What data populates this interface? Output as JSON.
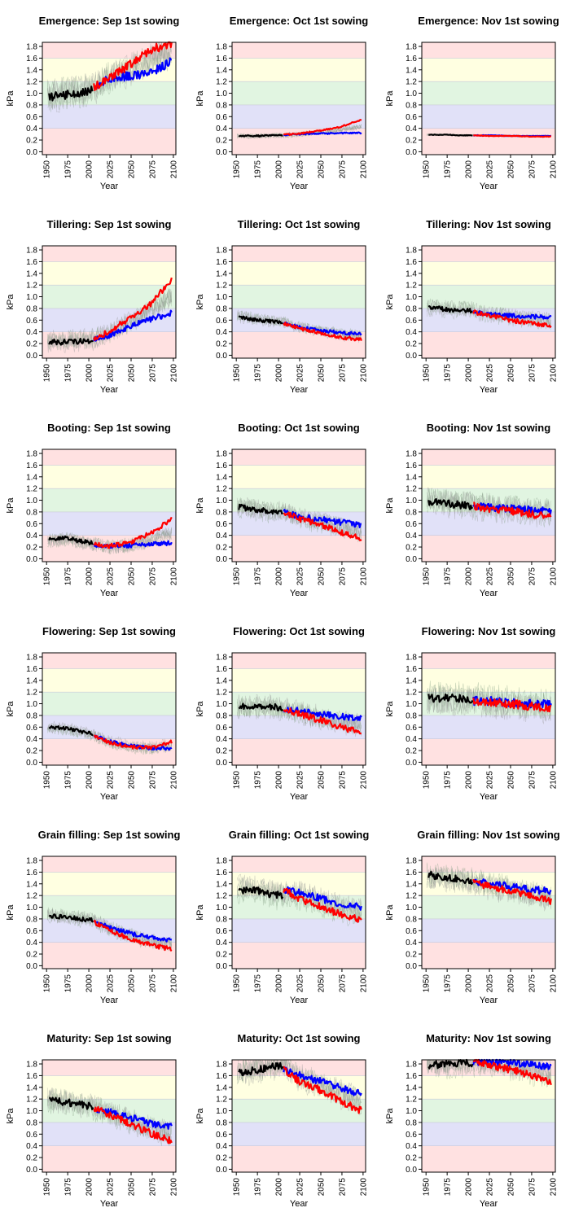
{
  "chart_data": {
    "type": "line",
    "xlabel": "Year",
    "ylabel": "kPa",
    "xlim": [
      1945,
      2103
    ],
    "ylim": [
      -0.05,
      1.87
    ],
    "x_ticks": [
      "1950",
      "1975",
      "2000",
      "2025",
      "2050",
      "2075",
      "2100"
    ],
    "y_ticks": [
      "0.0",
      "0.2",
      "0.4",
      "0.6",
      "0.8",
      "1.0",
      "1.2",
      "1.4",
      "1.6",
      "1.8"
    ],
    "bands": [
      {
        "from": -0.05,
        "to": 0.4,
        "color": "#ffe1e1"
      },
      {
        "from": 0.4,
        "to": 0.8,
        "color": "#e1e1f8"
      },
      {
        "from": 0.8,
        "to": 1.2,
        "color": "#e1f5e1"
      },
      {
        "from": 1.2,
        "to": 1.6,
        "color": "#ffffe1"
      },
      {
        "from": 1.6,
        "to": 1.87,
        "color": "#ffe1e1"
      }
    ],
    "colors": {
      "historical": "#000000",
      "blue_series": "#0000ff",
      "red_series": "#ff0000",
      "ensemble": "#8aa38a"
    },
    "panels": [
      {
        "title": "Emergence: Sep 1st sowing",
        "historical": {
          "x": [
            1955,
            1975,
            1990,
            2005
          ],
          "y": [
            0.93,
            0.98,
            1.0,
            1.07
          ]
        },
        "blue": {
          "x": [
            2006,
            2025,
            2050,
            2075,
            2098
          ],
          "y": [
            1.1,
            1.25,
            1.3,
            1.35,
            1.55
          ]
        },
        "red": {
          "x": [
            2006,
            2025,
            2050,
            2075,
            2098
          ],
          "y": [
            1.1,
            1.25,
            1.5,
            1.75,
            1.85
          ]
        },
        "spread": 0.3
      },
      {
        "title": "Emergence: Oct 1st sowing",
        "historical": {
          "x": [
            1955,
            1975,
            1990,
            2005
          ],
          "y": [
            0.27,
            0.27,
            0.28,
            0.28
          ]
        },
        "blue": {
          "x": [
            2006,
            2025,
            2050,
            2075,
            2098
          ],
          "y": [
            0.29,
            0.3,
            0.31,
            0.32,
            0.32
          ]
        },
        "red": {
          "x": [
            2006,
            2025,
            2050,
            2075,
            2098
          ],
          "y": [
            0.29,
            0.31,
            0.36,
            0.43,
            0.55
          ]
        },
        "spread": 0.05
      },
      {
        "title": "Emergence: Nov 1st sowing",
        "historical": {
          "x": [
            1955,
            1975,
            1990,
            2005
          ],
          "y": [
            0.29,
            0.29,
            0.28,
            0.28
          ]
        },
        "blue": {
          "x": [
            2006,
            2025,
            2050,
            2075,
            2098
          ],
          "y": [
            0.28,
            0.28,
            0.27,
            0.27,
            0.27
          ]
        },
        "red": {
          "x": [
            2006,
            2025,
            2050,
            2075,
            2098
          ],
          "y": [
            0.28,
            0.27,
            0.27,
            0.26,
            0.26
          ]
        },
        "spread": 0.02
      },
      {
        "title": "Tillering: Sep 1st sowing",
        "historical": {
          "x": [
            1955,
            1975,
            1990,
            2005
          ],
          "y": [
            0.22,
            0.23,
            0.24,
            0.26
          ]
        },
        "blue": {
          "x": [
            2006,
            2025,
            2050,
            2075,
            2098
          ],
          "y": [
            0.27,
            0.35,
            0.5,
            0.62,
            0.72
          ]
        },
        "red": {
          "x": [
            2006,
            2025,
            2050,
            2075,
            2098
          ],
          "y": [
            0.27,
            0.42,
            0.65,
            0.9,
            1.3
          ]
        },
        "spread": 0.2
      },
      {
        "title": "Tillering: Oct 1st sowing",
        "historical": {
          "x": [
            1955,
            1975,
            1990,
            2005
          ],
          "y": [
            0.65,
            0.6,
            0.58,
            0.56
          ]
        },
        "blue": {
          "x": [
            2006,
            2025,
            2050,
            2075,
            2098
          ],
          "y": [
            0.55,
            0.48,
            0.42,
            0.38,
            0.36
          ]
        },
        "red": {
          "x": [
            2006,
            2025,
            2050,
            2075,
            2098
          ],
          "y": [
            0.55,
            0.46,
            0.38,
            0.3,
            0.27
          ]
        },
        "spread": 0.12
      },
      {
        "title": "Tillering: Nov 1st sowing",
        "historical": {
          "x": [
            1955,
            1975,
            1990,
            2005
          ],
          "y": [
            0.82,
            0.78,
            0.77,
            0.76
          ]
        },
        "blue": {
          "x": [
            2006,
            2025,
            2050,
            2075,
            2098
          ],
          "y": [
            0.74,
            0.7,
            0.68,
            0.66,
            0.65
          ]
        },
        "red": {
          "x": [
            2006,
            2025,
            2050,
            2075,
            2098
          ],
          "y": [
            0.74,
            0.68,
            0.6,
            0.55,
            0.5
          ]
        },
        "spread": 0.15
      },
      {
        "title": "Booting: Sep 1st sowing",
        "historical": {
          "x": [
            1955,
            1975,
            1990,
            2005
          ],
          "y": [
            0.33,
            0.36,
            0.3,
            0.27
          ]
        },
        "blue": {
          "x": [
            2006,
            2025,
            2050,
            2075,
            2098
          ],
          "y": [
            0.24,
            0.22,
            0.23,
            0.25,
            0.27
          ]
        },
        "red": {
          "x": [
            2006,
            2025,
            2050,
            2075,
            2098
          ],
          "y": [
            0.24,
            0.22,
            0.28,
            0.45,
            0.68
          ]
        },
        "spread": 0.15
      },
      {
        "title": "Booting: Oct 1st sowing",
        "historical": {
          "x": [
            1955,
            1975,
            1990,
            2005
          ],
          "y": [
            0.88,
            0.84,
            0.8,
            0.8
          ]
        },
        "blue": {
          "x": [
            2006,
            2025,
            2050,
            2075,
            2098
          ],
          "y": [
            0.8,
            0.72,
            0.68,
            0.62,
            0.58
          ]
        },
        "red": {
          "x": [
            2006,
            2025,
            2050,
            2075,
            2098
          ],
          "y": [
            0.8,
            0.68,
            0.58,
            0.45,
            0.35
          ]
        },
        "spread": 0.2
      },
      {
        "title": "Booting: Nov 1st sowing",
        "historical": {
          "x": [
            1955,
            1975,
            1990,
            2005
          ],
          "y": [
            0.97,
            0.94,
            0.92,
            0.9
          ]
        },
        "blue": {
          "x": [
            2006,
            2025,
            2050,
            2075,
            2098
          ],
          "y": [
            0.9,
            0.88,
            0.86,
            0.84,
            0.82
          ]
        },
        "red": {
          "x": [
            2006,
            2025,
            2050,
            2075,
            2098
          ],
          "y": [
            0.9,
            0.86,
            0.82,
            0.76,
            0.72
          ]
        },
        "spread": 0.25
      },
      {
        "title": "Flowering: Sep 1st sowing",
        "historical": {
          "x": [
            1955,
            1975,
            1990,
            2005
          ],
          "y": [
            0.6,
            0.57,
            0.53,
            0.48
          ]
        },
        "blue": {
          "x": [
            2006,
            2025,
            2050,
            2075,
            2098
          ],
          "y": [
            0.45,
            0.35,
            0.28,
            0.24,
            0.24
          ]
        },
        "red": {
          "x": [
            2006,
            2025,
            2050,
            2075,
            2098
          ],
          "y": [
            0.45,
            0.33,
            0.26,
            0.25,
            0.35
          ]
        },
        "spread": 0.12
      },
      {
        "title": "Flowering: Oct 1st sowing",
        "historical": {
          "x": [
            1955,
            1975,
            1990,
            2005
          ],
          "y": [
            0.95,
            0.95,
            0.95,
            0.92
          ]
        },
        "blue": {
          "x": [
            2006,
            2025,
            2050,
            2075,
            2098
          ],
          "y": [
            0.9,
            0.88,
            0.82,
            0.78,
            0.75
          ]
        },
        "red": {
          "x": [
            2006,
            2025,
            2050,
            2075,
            2098
          ],
          "y": [
            0.9,
            0.82,
            0.72,
            0.6,
            0.5
          ]
        },
        "spread": 0.22
      },
      {
        "title": "Flowering: Nov 1st sowing",
        "historical": {
          "x": [
            1955,
            1975,
            1990,
            2005
          ],
          "y": [
            1.1,
            1.1,
            1.08,
            1.08
          ]
        },
        "blue": {
          "x": [
            2006,
            2025,
            2050,
            2075,
            2098
          ],
          "y": [
            1.05,
            1.05,
            1.02,
            1.0,
            0.98
          ]
        },
        "red": {
          "x": [
            2006,
            2025,
            2050,
            2075,
            2098
          ],
          "y": [
            1.05,
            1.02,
            1.0,
            0.95,
            0.92
          ]
        },
        "spread": 0.3
      },
      {
        "title": "Grain filling: Sep 1st sowing",
        "historical": {
          "x": [
            1955,
            1975,
            1990,
            2005
          ],
          "y": [
            0.85,
            0.83,
            0.8,
            0.78
          ]
        },
        "blue": {
          "x": [
            2006,
            2025,
            2050,
            2075,
            2098
          ],
          "y": [
            0.75,
            0.65,
            0.55,
            0.48,
            0.43
          ]
        },
        "red": {
          "x": [
            2006,
            2025,
            2050,
            2075,
            2098
          ],
          "y": [
            0.75,
            0.6,
            0.45,
            0.35,
            0.28
          ]
        },
        "spread": 0.15
      },
      {
        "title": "Grain filling: Oct 1st sowing",
        "historical": {
          "x": [
            1955,
            1975,
            1990,
            2005
          ],
          "y": [
            1.3,
            1.28,
            1.22,
            1.2
          ]
        },
        "blue": {
          "x": [
            2006,
            2025,
            2050,
            2075,
            2098
          ],
          "y": [
            1.3,
            1.25,
            1.15,
            1.05,
            1.0
          ]
        },
        "red": {
          "x": [
            2006,
            2025,
            2050,
            2075,
            2098
          ],
          "y": [
            1.3,
            1.15,
            1.0,
            0.88,
            0.78
          ]
        },
        "spread": 0.25
      },
      {
        "title": "Grain filling: Nov 1st sowing",
        "historical": {
          "x": [
            1955,
            1975,
            1990,
            2005
          ],
          "y": [
            1.55,
            1.5,
            1.48,
            1.45
          ]
        },
        "blue": {
          "x": [
            2006,
            2025,
            2050,
            2075,
            2098
          ],
          "y": [
            1.45,
            1.4,
            1.35,
            1.3,
            1.27
          ]
        },
        "red": {
          "x": [
            2006,
            2025,
            2050,
            2075,
            2098
          ],
          "y": [
            1.45,
            1.35,
            1.28,
            1.18,
            1.1
          ]
        },
        "spread": 0.25
      },
      {
        "title": "Maturity: Sep 1st sowing",
        "historical": {
          "x": [
            1955,
            1975,
            1990,
            2005
          ],
          "y": [
            1.18,
            1.14,
            1.1,
            1.08
          ]
        },
        "blue": {
          "x": [
            2006,
            2025,
            2050,
            2075,
            2098
          ],
          "y": [
            1.05,
            0.98,
            0.88,
            0.78,
            0.72
          ]
        },
        "red": {
          "x": [
            2006,
            2025,
            2050,
            2075,
            2098
          ],
          "y": [
            1.05,
            0.92,
            0.78,
            0.6,
            0.48
          ]
        },
        "spread": 0.25
      },
      {
        "title": "Maturity: Oct 1st sowing",
        "historical": {
          "x": [
            1955,
            1975,
            1990,
            2005
          ],
          "y": [
            1.65,
            1.7,
            1.75,
            1.78
          ]
        },
        "blue": {
          "x": [
            2006,
            2025,
            2050,
            2075,
            2098
          ],
          "y": [
            1.7,
            1.6,
            1.5,
            1.38,
            1.28
          ]
        },
        "red": {
          "x": [
            2006,
            2025,
            2050,
            2075,
            2098
          ],
          "y": [
            1.7,
            1.5,
            1.35,
            1.15,
            1.0
          ]
        },
        "spread": 0.25
      },
      {
        "title": "Maturity: Nov 1st sowing",
        "historical": {
          "x": [
            1955,
            1975,
            1990,
            2005
          ],
          "y": [
            1.78,
            1.8,
            1.82,
            1.82
          ]
        },
        "blue": {
          "x": [
            2006,
            2025,
            2050,
            2075,
            2098
          ],
          "y": [
            1.84,
            1.84,
            1.82,
            1.78,
            1.75
          ]
        },
        "red": {
          "x": [
            2006,
            2025,
            2050,
            2075,
            2098
          ],
          "y": [
            1.84,
            1.78,
            1.7,
            1.6,
            1.5
          ]
        },
        "spread": 0.25
      }
    ]
  }
}
